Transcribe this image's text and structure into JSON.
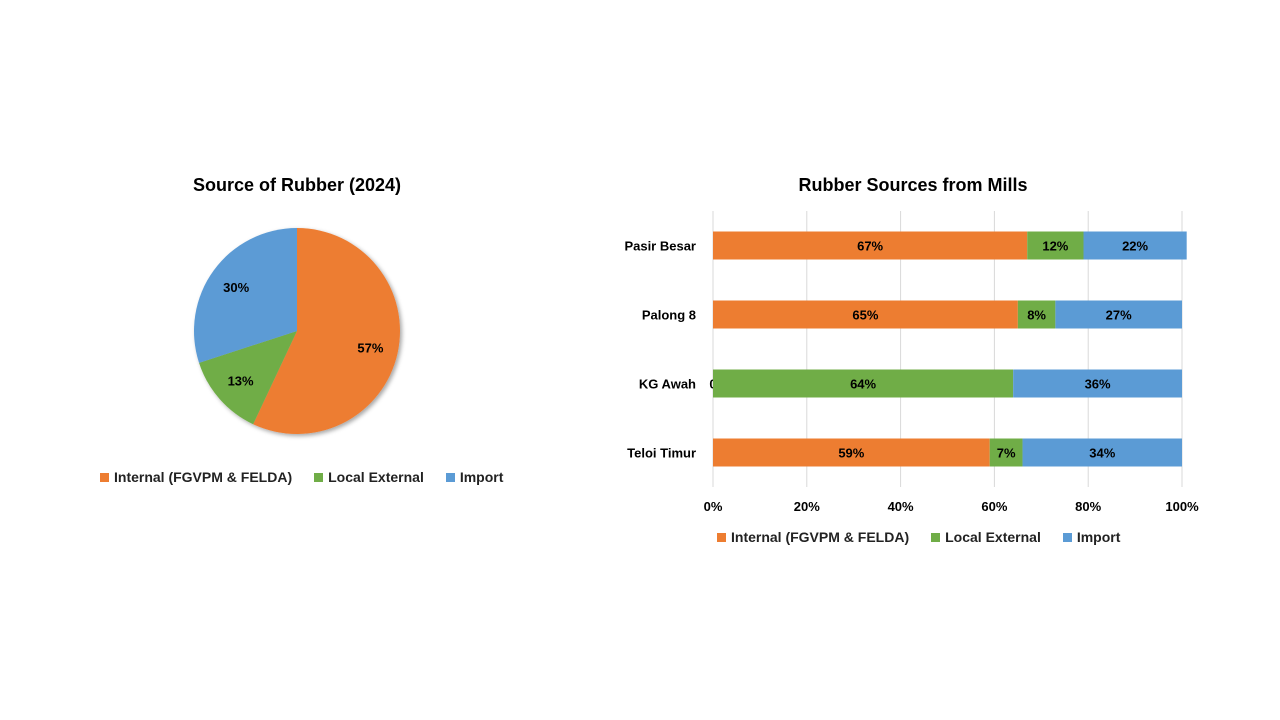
{
  "colors": {
    "internal": "#ED7D31",
    "local": "#70AD47",
    "import": "#5B9BD5"
  },
  "chart_data": [
    {
      "type": "pie",
      "title": "Source of Rubber (2024)",
      "slices": [
        {
          "name": "Internal (FGVPM & FELDA)",
          "value": 57,
          "label": "57%"
        },
        {
          "name": "Local External",
          "value": 13,
          "label": "13%"
        },
        {
          "name": "Import",
          "value": 30,
          "label": "30%"
        }
      ],
      "legend": "bottom"
    },
    {
      "type": "bar",
      "orientation": "horizontal",
      "stacked": "percent",
      "title": "Rubber Sources from Mills",
      "categories": [
        "Pasir Besar",
        "Palong 8",
        "KG Awah",
        "Teloi Timur"
      ],
      "series": [
        {
          "name": "Internal (FGVPM & FELDA)",
          "values": [
            67,
            65,
            0,
            59
          ],
          "labels": [
            "67%",
            "65%",
            "0",
            "59%"
          ]
        },
        {
          "name": "Local External",
          "values": [
            12,
            8,
            64,
            7
          ],
          "labels": [
            "12%",
            "8%",
            "64%",
            "7%"
          ]
        },
        {
          "name": "Import",
          "values": [
            22,
            27,
            36,
            34
          ],
          "labels": [
            "22%",
            "27%",
            "36%",
            "34%"
          ]
        }
      ],
      "xlim": [
        0,
        100
      ],
      "xticks": [
        "0%",
        "20%",
        "40%",
        "60%",
        "80%",
        "100%"
      ],
      "grid": true,
      "legend": "bottom"
    }
  ]
}
